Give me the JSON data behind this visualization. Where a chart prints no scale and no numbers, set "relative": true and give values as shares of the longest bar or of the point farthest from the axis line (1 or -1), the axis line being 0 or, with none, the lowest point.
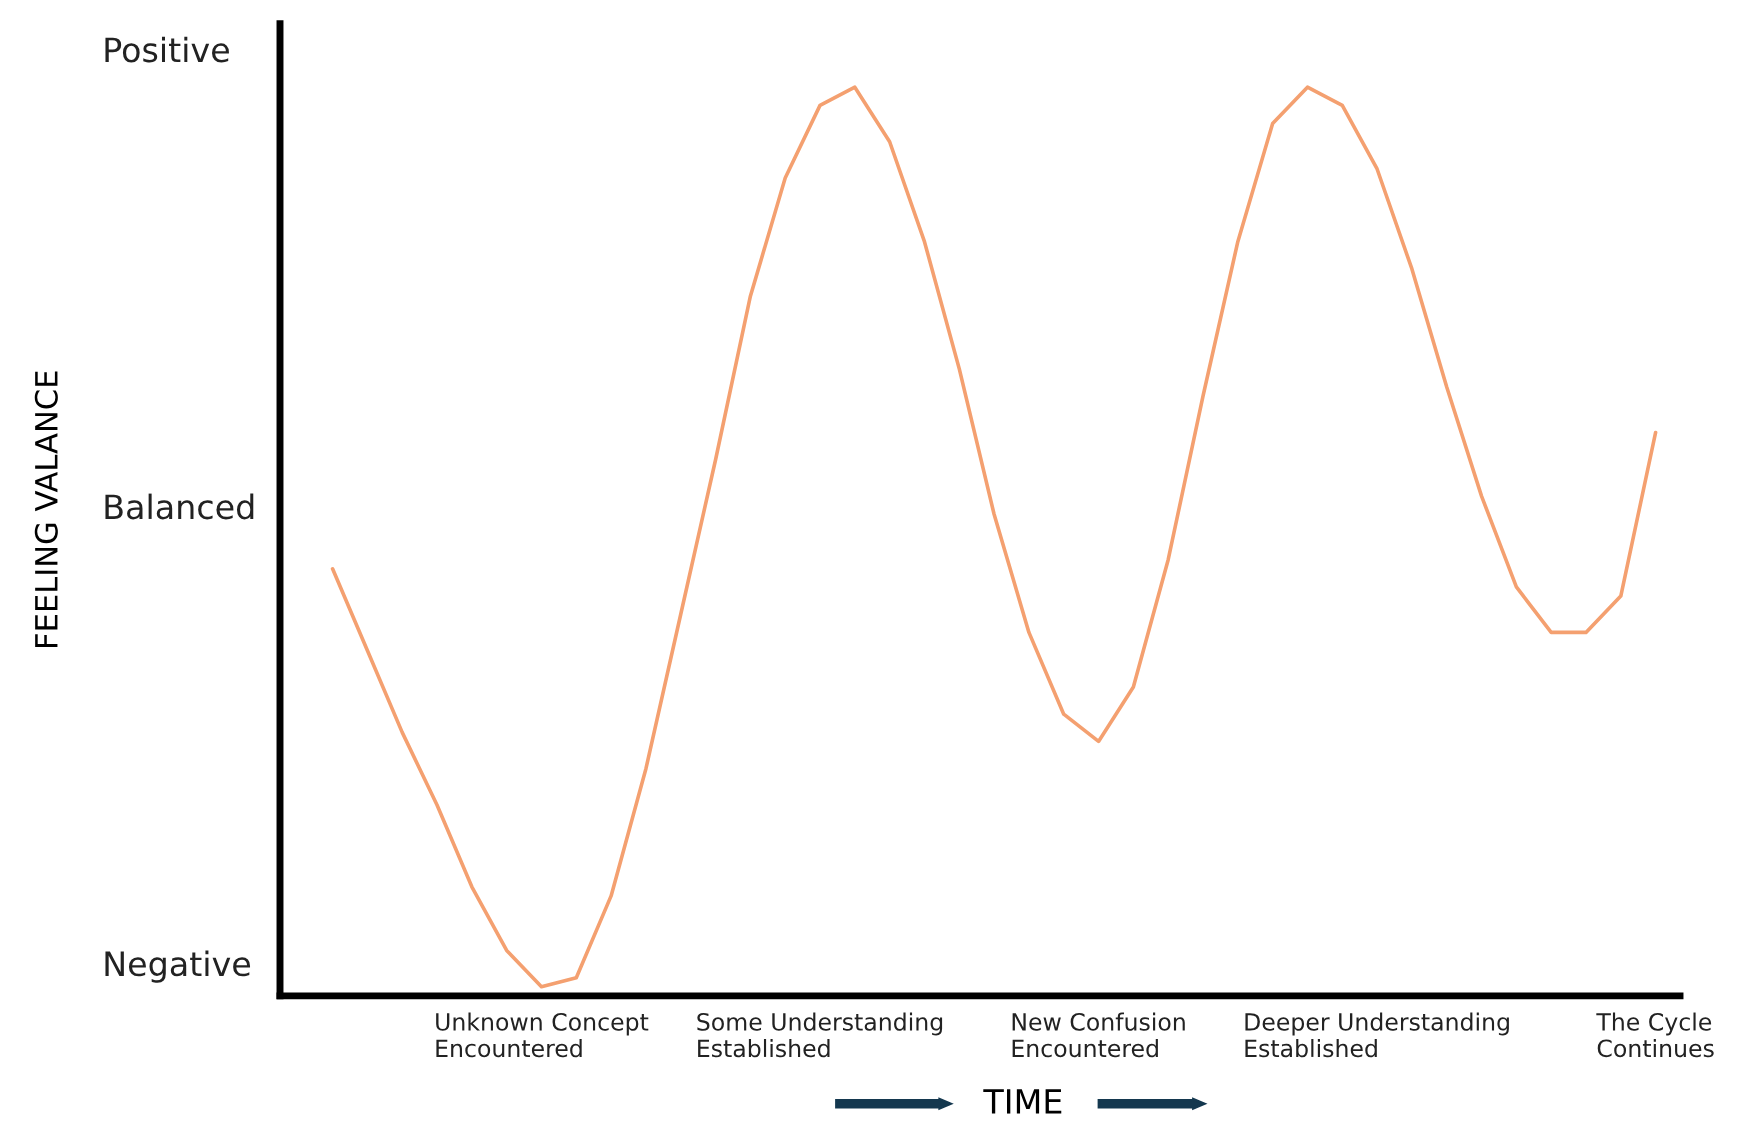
{
  "chart_data": {
    "type": "line",
    "relative": true,
    "xlabel": "TIME",
    "categories": [
      null,
      null,
      null,
      null,
      null,
      null,
      "Unknown Concept\nEncountered",
      null,
      null,
      null,
      null,
      null,
      null,
      null,
      "Some Understanding\nEstablished",
      null,
      null,
      null,
      null,
      null,
      null,
      null,
      "New Confusion\nEncountered",
      null,
      null,
      null,
      null,
      null,
      null,
      null,
      "Deeper Understanding\nEstablished",
      null,
      null,
      null,
      null,
      null,
      null,
      null,
      "The Cycle\nContinues"
    ],
    "series": [
      {
        "color": "#f4a070",
        "values": [
          0.47,
          0.38,
          0.29,
          0.21,
          0.12,
          0.05,
          0.01,
          0.02,
          0.11,
          0.25,
          0.42,
          0.59,
          0.77,
          0.9,
          0.98,
          1.0,
          0.94,
          0.83,
          0.69,
          0.53,
          0.4,
          0.31,
          0.28,
          0.34,
          0.48,
          0.66,
          0.83,
          0.96,
          1.0,
          0.98,
          0.91,
          0.8,
          0.67,
          0.55,
          0.45,
          0.4,
          0.4,
          0.44,
          0.62
        ]
      }
    ],
    "annotations": [
      "Negative",
      "Balanced",
      "Positive",
      "FEELING VALANCE"
    ],
    "grid": false,
    "legend": false,
    "marker": "none",
    "line_style": "solid"
  }
}
